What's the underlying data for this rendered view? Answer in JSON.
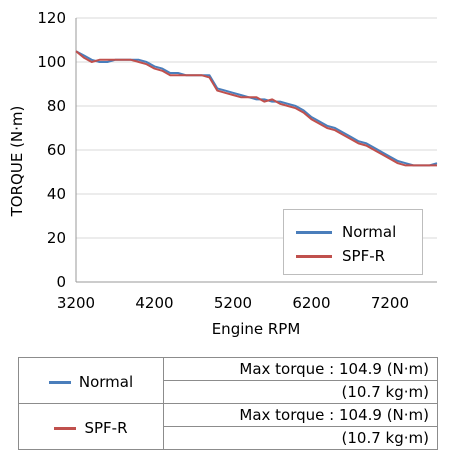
{
  "chart_data": {
    "type": "line",
    "title": "",
    "xlabel": "Engine RPM",
    "ylabel": "TORQUE (N·m)",
    "xlim": [
      3200,
      7800
    ],
    "ylim": [
      0,
      120
    ],
    "xticks": [
      "3200",
      "4200",
      "5200",
      "6200",
      "7200"
    ],
    "yticks": [
      "0",
      "20",
      "40",
      "60",
      "80",
      "100",
      "120"
    ],
    "grid": "horizontal",
    "legend_position": "lower-right",
    "series": [
      {
        "name": "Normal",
        "color": "#4a7ebb",
        "x": [
          3200,
          3300,
          3400,
          3500,
          3600,
          3700,
          3800,
          3900,
          4000,
          4100,
          4200,
          4300,
          4400,
          4500,
          4600,
          4700,
          4800,
          4900,
          5000,
          5100,
          5200,
          5300,
          5400,
          5500,
          5600,
          5700,
          5800,
          5900,
          6000,
          6100,
          6200,
          6300,
          6400,
          6500,
          6600,
          6700,
          6800,
          6900,
          7000,
          7100,
          7200,
          7300,
          7400,
          7500,
          7600,
          7700,
          7800
        ],
        "y": [
          104.9,
          103,
          101,
          100,
          100,
          101,
          101,
          101,
          101,
          100,
          98,
          97,
          95,
          95,
          94,
          94,
          94,
          94,
          88,
          87,
          86,
          85,
          84,
          83,
          83,
          82,
          82,
          81,
          80,
          78,
          75,
          73,
          71,
          70,
          68,
          66,
          64,
          63,
          61,
          59,
          57,
          55,
          54,
          53,
          53,
          53,
          54
        ]
      },
      {
        "name": "SPF-R",
        "color": "#c0504d",
        "x": [
          3200,
          3300,
          3400,
          3500,
          3600,
          3700,
          3800,
          3900,
          4000,
          4100,
          4200,
          4300,
          4400,
          4500,
          4600,
          4700,
          4800,
          4900,
          5000,
          5100,
          5200,
          5300,
          5400,
          5500,
          5600,
          5700,
          5800,
          5900,
          6000,
          6100,
          6200,
          6300,
          6400,
          6500,
          6600,
          6700,
          6800,
          6900,
          7000,
          7100,
          7200,
          7300,
          7400,
          7500,
          7600,
          7700,
          7800
        ],
        "y": [
          104.9,
          102,
          100,
          101,
          101,
          101,
          101,
          101,
          100,
          99,
          97,
          96,
          94,
          94,
          94,
          94,
          94,
          93,
          87,
          86,
          85,
          84,
          84,
          84,
          82,
          83,
          81,
          80,
          79,
          77,
          74,
          72,
          70,
          69,
          67,
          65,
          63,
          62,
          60,
          58,
          56,
          54,
          53,
          53,
          53,
          53,
          53
        ]
      }
    ]
  },
  "legend": {
    "normal_label": "Normal",
    "spfr_label": "SPF-R"
  },
  "table": {
    "rows": [
      {
        "name": "Normal",
        "color": "#4a7ebb",
        "line1": "Max torque : 104.9 (N·m)",
        "line2": "(10.7 kg·m)"
      },
      {
        "name": "SPF-R",
        "color": "#c0504d",
        "line1": "Max torque : 104.9 (N·m)",
        "line2": "(10.7 kg·m)"
      }
    ]
  }
}
